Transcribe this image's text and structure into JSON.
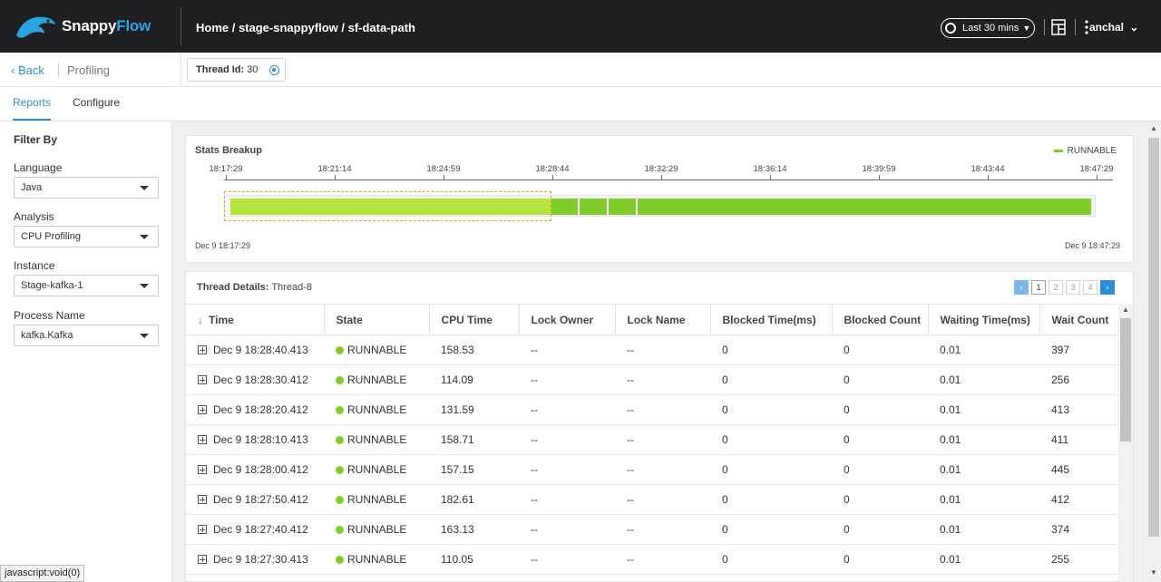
{
  "app": {
    "brand_a": "Snappy",
    "brand_b": "Flow"
  },
  "header": {
    "breadcrumb": "Home / stage-snappyflow / sf-data-path",
    "time_range": "Last 30 mins",
    "user": "anchal"
  },
  "subheader": {
    "back": "Back",
    "section": "Profiling",
    "thread_label": "Thread Id:",
    "thread_value": "30"
  },
  "tabs": [
    {
      "label": "Reports",
      "active": true
    },
    {
      "label": "Configure",
      "active": false
    }
  ],
  "sidebar": {
    "title": "Filter By",
    "filters": [
      {
        "label": "Language",
        "value": "Java"
      },
      {
        "label": "Analysis",
        "value": "CPU Profiling"
      },
      {
        "label": "Instance",
        "value": "Stage-kafka-1"
      },
      {
        "label": "Process Name",
        "value": "kafka.Kafka"
      }
    ]
  },
  "stats": {
    "title": "Stats Breakup",
    "legend": "RUNNABLE",
    "ticks": [
      "18:17:29",
      "18:21:14",
      "18:24:59",
      "18:28:44",
      "18:32:29",
      "18:36:14",
      "18:39:59",
      "18:43:44",
      "18:47:29"
    ],
    "start_label": "Dec 9 18:17:29",
    "end_label": "Dec 9 18:47:29",
    "legend_color": "#7fcc2a"
  },
  "thread_details": {
    "label": "Thread Details:",
    "thread": "Thread-8",
    "pages": [
      "1",
      "2",
      "3",
      "4"
    ],
    "columns": [
      "Time",
      "State",
      "CPU Time",
      "Lock Owner",
      "Lock Name",
      "Blocked Time(ms)",
      "Blocked Count",
      "Waiting Time(ms)",
      "Wait Count"
    ],
    "rows": [
      [
        "Dec 9 18:28:40.413",
        "RUNNABLE",
        "158.53",
        "--",
        "--",
        "0",
        "0",
        "0.01",
        "397"
      ],
      [
        "Dec 9 18:28:30.412",
        "RUNNABLE",
        "114.09",
        "--",
        "--",
        "0",
        "0",
        "0.01",
        "256"
      ],
      [
        "Dec 9 18:28:20.412",
        "RUNNABLE",
        "131.59",
        "--",
        "--",
        "0",
        "0",
        "0.01",
        "413"
      ],
      [
        "Dec 9 18:28:10.413",
        "RUNNABLE",
        "158.71",
        "--",
        "--",
        "0",
        "0",
        "0.01",
        "411"
      ],
      [
        "Dec 9 18:28:00.412",
        "RUNNABLE",
        "157.15",
        "--",
        "--",
        "0",
        "0",
        "0.01",
        "445"
      ],
      [
        "Dec 9 18:27:50.412",
        "RUNNABLE",
        "182.61",
        "--",
        "--",
        "0",
        "0",
        "0.01",
        "412"
      ],
      [
        "Dec 9 18:27:40.412",
        "RUNNABLE",
        "163.13",
        "--",
        "--",
        "0",
        "0",
        "0.01",
        "374"
      ],
      [
        "Dec 9 18:27:30.413",
        "RUNNABLE",
        "110.05",
        "--",
        "--",
        "0",
        "0",
        "0.01",
        "255"
      ]
    ]
  },
  "status_bar": "javascript:void(0)"
}
